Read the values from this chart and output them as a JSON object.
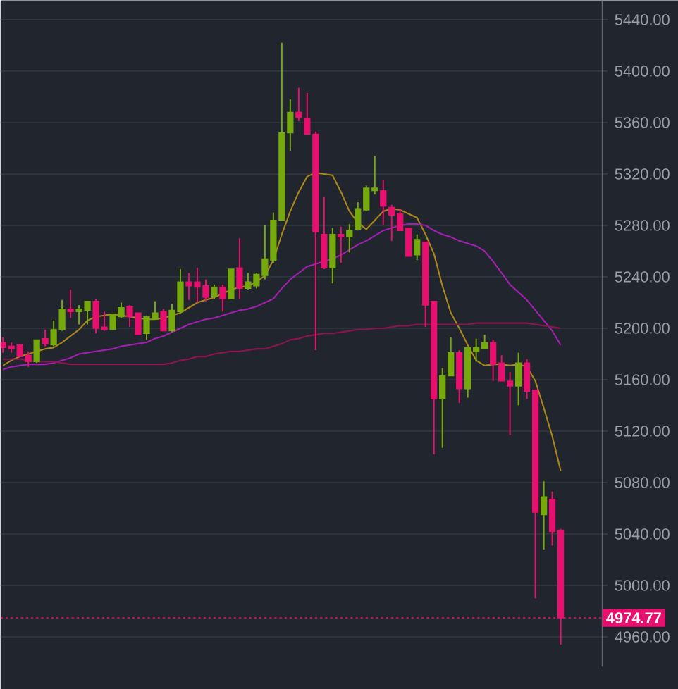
{
  "chart_data": {
    "type": "candlestick",
    "categories": [
      null,
      null,
      null,
      null,
      null,
      null,
      null,
      null,
      null,
      null,
      null,
      null,
      null,
      null,
      null,
      null,
      null,
      null,
      null,
      null,
      null,
      null,
      null,
      null,
      null,
      null,
      null,
      null,
      null,
      null,
      null,
      null,
      null,
      null,
      null,
      null,
      null,
      null,
      null,
      null,
      null,
      null,
      null,
      null,
      null,
      null,
      null,
      null,
      null,
      null,
      null,
      null,
      null,
      null,
      null,
      null,
      null,
      null,
      null,
      null,
      null,
      null,
      null,
      null,
      null,
      null,
      null
    ],
    "ohlc": [
      [
        5189,
        5193,
        5181,
        5185
      ],
      [
        5186,
        5189,
        5181,
        5184
      ],
      [
        5187,
        5188,
        5178,
        5178
      ],
      [
        5179,
        5182,
        5170,
        5174
      ],
      [
        5174,
        5191,
        5173,
        5191
      ],
      [
        5192,
        5199,
        5186,
        5188
      ],
      [
        5187,
        5206,
        5186,
        5199
      ],
      [
        5199,
        5222,
        5198,
        5215
      ],
      [
        5215,
        5230,
        5208,
        5213
      ],
      [
        5213,
        5218,
        5203,
        5215
      ],
      [
        5214,
        5221,
        5203,
        5221
      ],
      [
        5221,
        5223,
        5196,
        5200
      ],
      [
        5201,
        5213,
        5198,
        5199
      ],
      [
        5199,
        5211,
        5199,
        5211
      ],
      [
        5209,
        5220,
        5208,
        5216
      ],
      [
        5217,
        5218,
        5201,
        5209
      ],
      [
        5212,
        5212,
        5195,
        5195
      ],
      [
        5196,
        5210,
        5191,
        5209
      ],
      [
        5207,
        5221,
        5207,
        5212
      ],
      [
        5213,
        5215,
        5198,
        5198
      ],
      [
        5198,
        5219,
        5197,
        5214
      ],
      [
        5213,
        5246,
        5212,
        5236
      ],
      [
        5236,
        5243,
        5222,
        5233
      ],
      [
        5236,
        5247,
        5220,
        5232
      ],
      [
        5233,
        5238,
        5221,
        5224
      ],
      [
        5225,
        5234,
        5223,
        5232
      ],
      [
        5232,
        5234,
        5213,
        5223
      ],
      [
        5223,
        5246,
        5223,
        5246
      ],
      [
        5247,
        5270,
        5223,
        5231
      ],
      [
        5231,
        5243,
        5230,
        5236
      ],
      [
        5233,
        5243,
        5231,
        5242
      ],
      [
        5241,
        5280,
        5238,
        5254
      ],
      [
        5253,
        5290,
        5251,
        5284
      ],
      [
        5284,
        5422,
        5284,
        5352
      ],
      [
        5352,
        5378,
        5338,
        5368
      ],
      [
        5368,
        5387,
        5361,
        5364
      ],
      [
        5363,
        5383,
        5351,
        5351
      ],
      [
        5351,
        5353,
        5183,
        5275
      ],
      [
        5273,
        5302,
        5246,
        5247
      ],
      [
        5247,
        5278,
        5235,
        5273
      ],
      [
        5273,
        5279,
        5251,
        5271
      ],
      [
        5271,
        5281,
        5259,
        5276
      ],
      [
        5277,
        5298,
        5276,
        5293
      ],
      [
        5292,
        5311,
        5291,
        5309
      ],
      [
        5307,
        5334,
        5304,
        5309
      ],
      [
        5307,
        5315,
        5280,
        5295
      ],
      [
        5294,
        5296,
        5268,
        5288
      ],
      [
        5289,
        5293,
        5276,
        5276
      ],
      [
        5278,
        5278,
        5256,
        5256
      ],
      [
        5257,
        5273,
        5253,
        5269
      ],
      [
        5267,
        5267,
        5201,
        5218
      ],
      [
        5221,
        5221,
        5102,
        5145
      ],
      [
        5145,
        5169,
        5107,
        5163
      ],
      [
        5163,
        5193,
        5163,
        5181
      ],
      [
        5181,
        5183,
        5142,
        5153
      ],
      [
        5153,
        5185,
        5146,
        5185
      ],
      [
        5182,
        5192,
        5174,
        5185
      ],
      [
        5184,
        5195,
        5184,
        5189
      ],
      [
        5189,
        5191,
        5159,
        5172
      ],
      [
        5173,
        5179,
        5159,
        5159
      ],
      [
        5159,
        5166,
        5117,
        5155
      ],
      [
        5155,
        5181,
        5140,
        5173
      ],
      [
        5173,
        5176,
        5145,
        5151
      ],
      [
        5152,
        5152,
        4990,
        5057
      ],
      [
        5055,
        5081,
        5028,
        5069
      ],
      [
        5067,
        5073,
        5031,
        5042
      ],
      [
        5043,
        5044,
        4954,
        4974.77
      ]
    ],
    "colors": [
      "#e8106e",
      "#e8106e",
      "#e8106e",
      "#e8106e",
      "#76a90c",
      "#e8106e",
      "#76a90c",
      "#76a90c",
      "#e8106e",
      "#76a90c",
      "#76a90c",
      "#e8106e",
      "#e8106e",
      "#76a90c",
      "#76a90c",
      "#e8106e",
      "#e8106e",
      "#76a90c",
      "#76a90c",
      "#e8106e",
      "#76a90c",
      "#76a90c",
      "#e8106e",
      "#e8106e",
      "#e8106e",
      "#76a90c",
      "#e8106e",
      "#76a90c",
      "#e8106e",
      "#76a90c",
      "#76a90c",
      "#76a90c",
      "#76a90c",
      "#76a90c",
      "#76a90c",
      "#e8106e",
      "#e8106e",
      "#e8106e",
      "#e8106e",
      "#76a90c",
      "#e8106e",
      "#76a90c",
      "#76a90c",
      "#76a90c",
      "#76a90c",
      "#e8106e",
      "#e8106e",
      "#e8106e",
      "#e8106e",
      "#76a90c",
      "#e8106e",
      "#e8106e",
      "#76a90c",
      "#76a90c",
      "#e8106e",
      "#76a90c",
      "#76a90c",
      "#76a90c",
      "#e8106e",
      "#e8106e",
      "#e8106e",
      "#76a90c",
      "#e8106e",
      "#e8106e",
      "#76a90c",
      "#e8106e",
      "#e8106e"
    ],
    "series": [
      {
        "type": "line",
        "color": "#a8861c",
        "values": [
          5171,
          5175,
          5178,
          5180,
          5182,
          5184,
          5185,
          5189,
          5194,
          5199,
          5206,
          5209,
          5210,
          5211,
          5210,
          5209,
          5208,
          5207,
          5207,
          5208,
          5210,
          5212,
          5216,
          5220,
          5222,
          5224,
          5227,
          5230,
          5232,
          5233,
          5236,
          5241,
          5253,
          5273,
          5291,
          5306,
          5318,
          5321,
          5320,
          5319,
          5306,
          5291,
          5282,
          5277,
          5284,
          5291,
          5293,
          5292,
          5289,
          5286,
          5273,
          5258,
          5233,
          5212,
          5200,
          5187,
          5175,
          5171,
          5172,
          5172,
          5171,
          5172,
          5170,
          5159,
          5138,
          5116,
          5089
        ]
      },
      {
        "type": "line",
        "color": "#a020b0",
        "values": [
          5168,
          5170,
          5171,
          5172,
          5172,
          5172,
          5173,
          5175,
          5177,
          5180,
          5181,
          5182,
          5183,
          5184,
          5186,
          5187,
          5188,
          5189,
          5192,
          5194,
          5197,
          5200,
          5203,
          5205,
          5207,
          5208,
          5210,
          5212,
          5214,
          5215,
          5217,
          5220,
          5223,
          5231,
          5238,
          5243,
          5248,
          5250,
          5252,
          5254,
          5257,
          5261,
          5265,
          5268,
          5272,
          5276,
          5278,
          5280,
          5281,
          5281,
          5280,
          5276,
          5273,
          5271,
          5268,
          5266,
          5264,
          5260,
          5252,
          5243,
          5234,
          5228,
          5222,
          5214,
          5206,
          5198,
          5187
        ]
      },
      {
        "type": "line",
        "color": "#8a1550",
        "values": [
          5176,
          5176,
          5176,
          5175,
          5174,
          5174,
          5174,
          5173,
          5172,
          5172,
          5172,
          5172,
          5172,
          5172,
          5172,
          5172,
          5172,
          5172,
          5172,
          5172,
          5173,
          5175,
          5176,
          5178,
          5178,
          5180,
          5181,
          5182,
          5182,
          5183,
          5184,
          5184,
          5186,
          5188,
          5191,
          5192,
          5194,
          5195,
          5196,
          5196,
          5197,
          5198,
          5199,
          5199,
          5200,
          5200,
          5201,
          5202,
          5202,
          5203,
          5203,
          5203,
          5203,
          5203,
          5203,
          5203,
          5204,
          5204,
          5204,
          5204,
          5204,
          5204,
          5204,
          5203,
          5202,
          5201,
          5200
        ]
      }
    ],
    "ylim": [
      4937,
      5455
    ],
    "yticks": [
      {
        "value": 4960,
        "label": "4960.00"
      },
      {
        "value": 5000,
        "label": "5000.00"
      },
      {
        "value": 5040,
        "label": "5040.00"
      },
      {
        "value": 5080,
        "label": "5080.00"
      },
      {
        "value": 5120,
        "label": "5120.00"
      },
      {
        "value": 5160,
        "label": "5160.00"
      },
      {
        "value": 5200,
        "label": "5200.00"
      },
      {
        "value": 5240,
        "label": "5240.00"
      },
      {
        "value": 5280,
        "label": "5280.00"
      },
      {
        "value": 5320,
        "label": "5320.00"
      },
      {
        "value": 5360,
        "label": "5360.00"
      },
      {
        "value": 5400,
        "label": "5400.00"
      },
      {
        "value": 5440,
        "label": "5440.00"
      }
    ],
    "grid": "y",
    "tick_labels": "y",
    "ref_lines": [
      {
        "axis": "y",
        "value": 4974.77,
        "label": "4974.77",
        "color": "#e8106e",
        "line_style": "dotted"
      }
    ]
  }
}
